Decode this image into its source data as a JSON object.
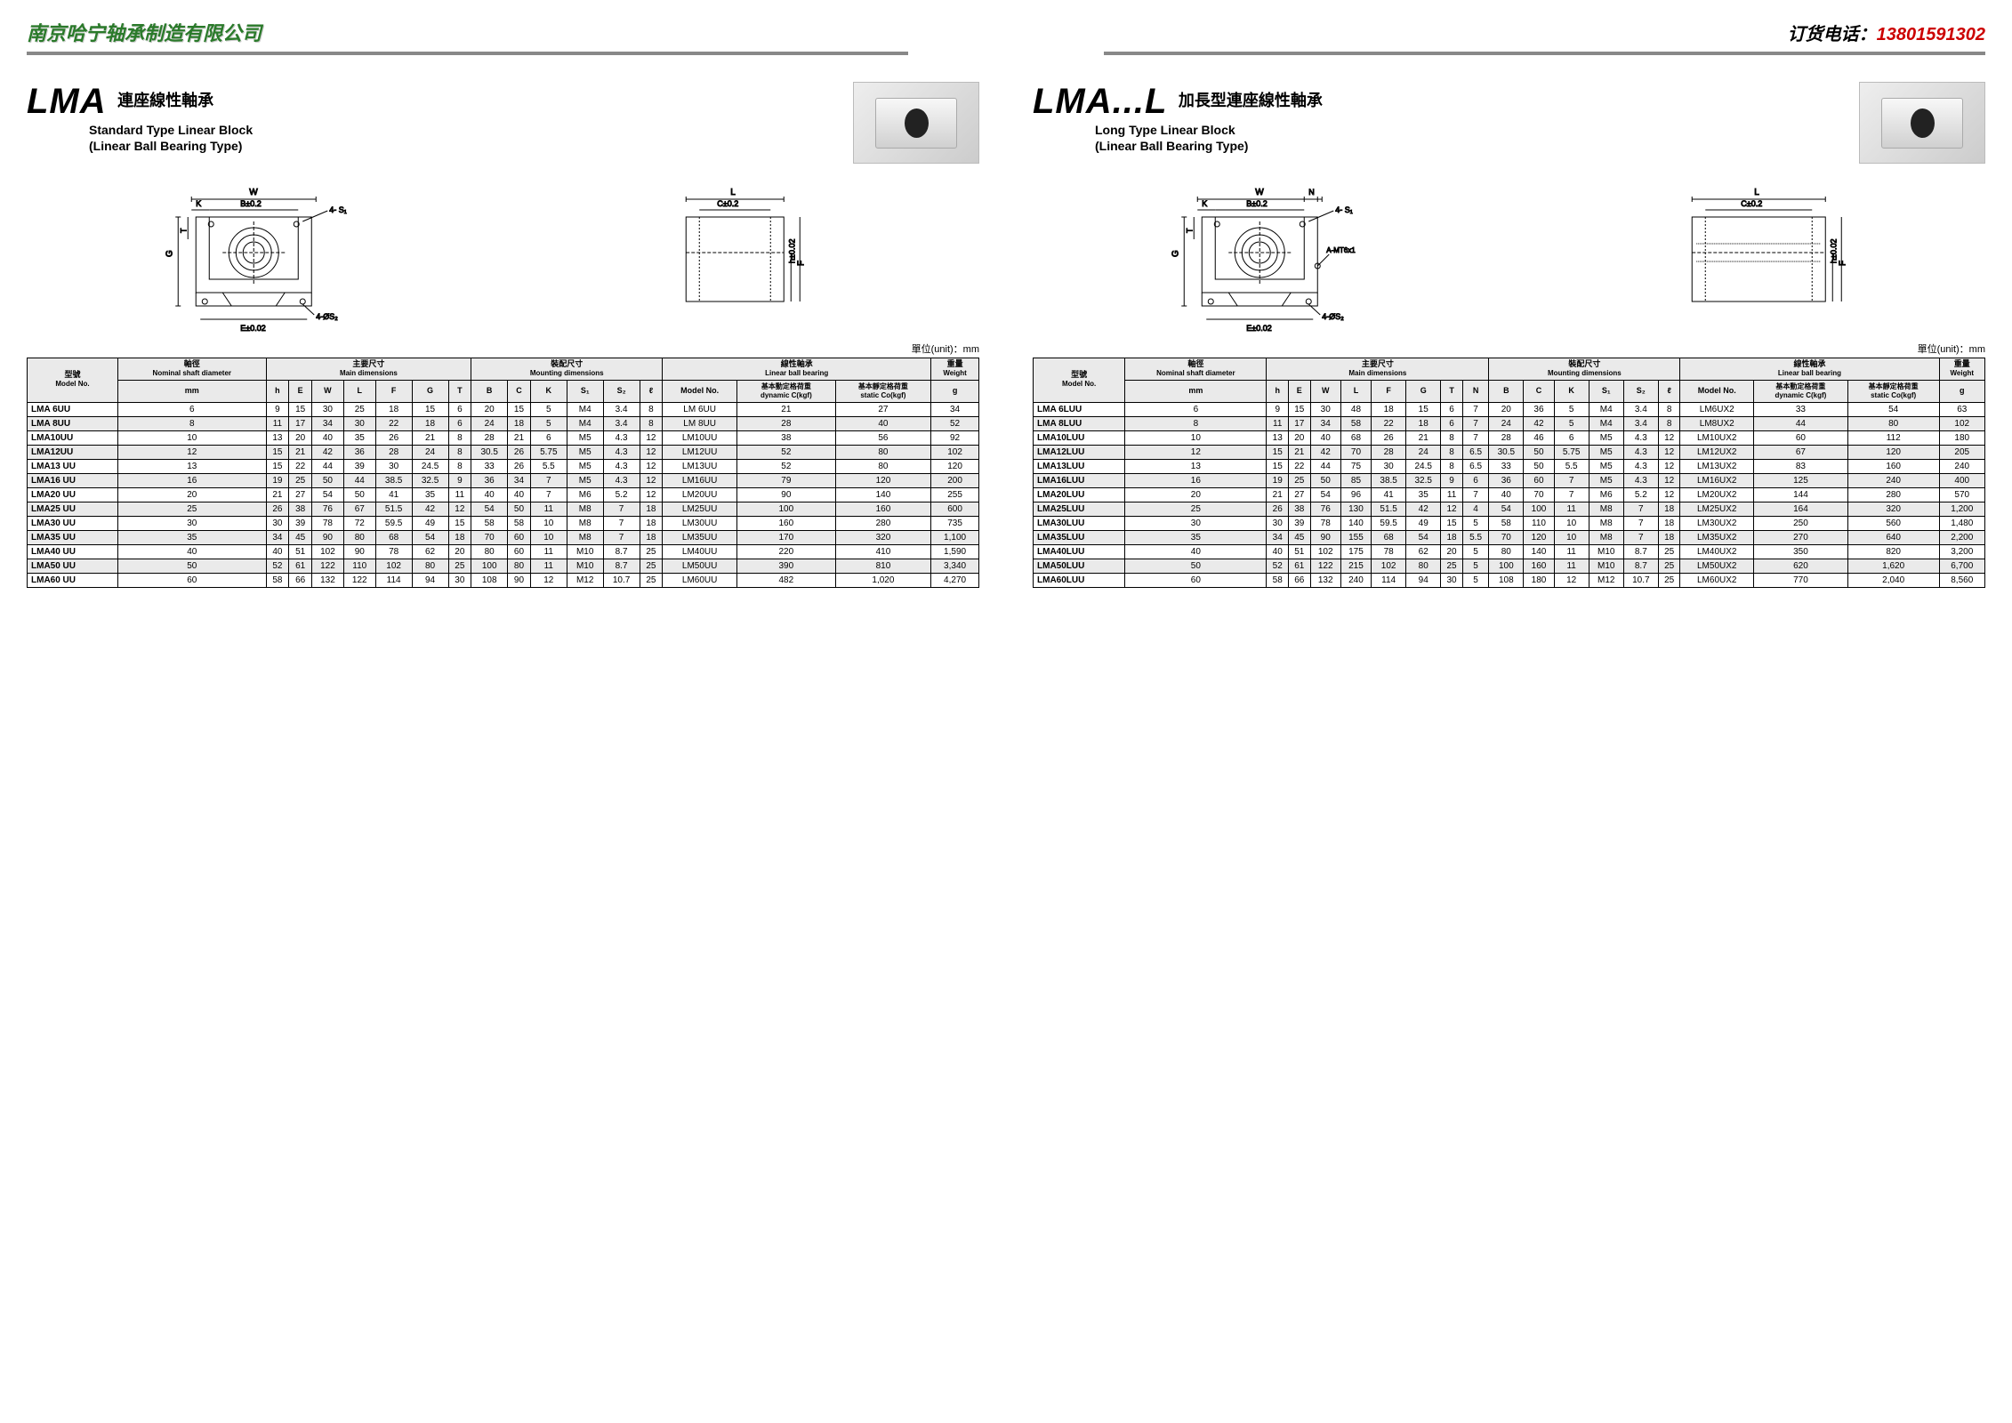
{
  "header": {
    "company": "南京哈宁轴承制造有限公司",
    "phone_label": "订货电话：",
    "phone": "13801591302"
  },
  "left": {
    "series": "LMA",
    "subtitle_cn": "連座線性軸承",
    "subtitle_en1": "Standard Type Linear Block",
    "subtitle_en2": "(Linear Ball Bearing Type)",
    "unit": "單位(unit)：mm",
    "headers": {
      "model": "型號",
      "model_en": "Model No.",
      "shaft": "軸徑",
      "shaft_en": "Nominal shaft diameter",
      "main": "主要尺寸",
      "main_en": "Main dimensions",
      "mount": "裝配尺寸",
      "mount_en": "Mounting dimensions",
      "lbb": "線性軸承",
      "lbb_en": "Linear ball bearing",
      "dyn": "基本動定格荷重",
      "dyn_en": "dynamic C(kgf)",
      "stat": "基本靜定格荷重",
      "stat_en": "static Co(kgf)",
      "wt": "重量",
      "wt_en": "Weight",
      "mm": "mm",
      "g": "g"
    },
    "cols": [
      "h",
      "E",
      "W",
      "L",
      "F",
      "G",
      "T",
      "B",
      "C",
      "K",
      "S₁",
      "S₂",
      "ℓ"
    ],
    "rows": [
      {
        "model": "LMA 6UU",
        "mm": 6,
        "v": [
          9,
          15,
          30,
          25,
          18,
          15,
          6,
          20,
          15,
          5,
          "M4",
          3.4,
          8
        ],
        "lm": "LM 6UU",
        "dyn": 21,
        "stat": 27,
        "g": 34,
        "gray": false
      },
      {
        "model": "LMA 8UU",
        "mm": 8,
        "v": [
          11,
          17,
          34,
          30,
          22,
          18,
          6,
          24,
          18,
          5,
          "M4",
          3.4,
          8
        ],
        "lm": "LM 8UU",
        "dyn": 28,
        "stat": 40,
        "g": 52,
        "gray": true
      },
      {
        "model": "LMA10UU",
        "mm": 10,
        "v": [
          13,
          20,
          40,
          35,
          26,
          21,
          8,
          28,
          21,
          6,
          "M5",
          4.3,
          12
        ],
        "lm": "LM10UU",
        "dyn": 38,
        "stat": 56,
        "g": 92,
        "gray": false
      },
      {
        "model": "LMA12UU",
        "mm": 12,
        "v": [
          15,
          21,
          42,
          36,
          28,
          24,
          8,
          30.5,
          26,
          5.75,
          "M5",
          4.3,
          12
        ],
        "lm": "LM12UU",
        "dyn": 52,
        "stat": 80,
        "g": 102,
        "gray": true
      },
      {
        "model": "LMA13 UU",
        "mm": 13,
        "v": [
          15,
          22,
          44,
          39,
          30,
          24.5,
          8,
          33,
          26,
          5.5,
          "M5",
          4.3,
          12
        ],
        "lm": "LM13UU",
        "dyn": 52,
        "stat": 80,
        "g": 120,
        "gray": false
      },
      {
        "model": "LMA16 UU",
        "mm": 16,
        "v": [
          19,
          25,
          50,
          44,
          38.5,
          32.5,
          9,
          36,
          34,
          7,
          "M5",
          4.3,
          12
        ],
        "lm": "LM16UU",
        "dyn": 79,
        "stat": 120,
        "g": 200,
        "gray": true
      },
      {
        "model": "LMA20 UU",
        "mm": 20,
        "v": [
          21,
          27,
          54,
          50,
          41,
          35,
          11,
          40,
          40,
          7,
          "M6",
          5.2,
          12
        ],
        "lm": "LM20UU",
        "dyn": 90,
        "stat": 140,
        "g": 255,
        "gray": false
      },
      {
        "model": "LMA25 UU",
        "mm": 25,
        "v": [
          26,
          38,
          76,
          67,
          51.5,
          42,
          12,
          54,
          50,
          11,
          "M8",
          7,
          18
        ],
        "lm": "LM25UU",
        "dyn": 100,
        "stat": 160,
        "g": 600,
        "gray": true
      },
      {
        "model": "LMA30 UU",
        "mm": 30,
        "v": [
          30,
          39,
          78,
          72,
          59.5,
          49,
          15,
          58,
          58,
          10,
          "M8",
          7,
          18
        ],
        "lm": "LM30UU",
        "dyn": 160,
        "stat": 280,
        "g": 735,
        "gray": false
      },
      {
        "model": "LMA35 UU",
        "mm": 35,
        "v": [
          34,
          45,
          90,
          80,
          68,
          54,
          18,
          70,
          60,
          10,
          "M8",
          7,
          18
        ],
        "lm": "LM35UU",
        "dyn": 170,
        "stat": 320,
        "g": "1,100",
        "gray": true
      },
      {
        "model": "LMA40 UU",
        "mm": 40,
        "v": [
          40,
          51,
          102,
          90,
          78,
          62,
          20,
          80,
          60,
          11,
          "M10",
          8.7,
          25
        ],
        "lm": "LM40UU",
        "dyn": 220,
        "stat": 410,
        "g": "1,590",
        "gray": false
      },
      {
        "model": "LMA50 UU",
        "mm": 50,
        "v": [
          52,
          61,
          122,
          110,
          102,
          80,
          25,
          100,
          80,
          11,
          "M10",
          8.7,
          25
        ],
        "lm": "LM50UU",
        "dyn": 390,
        "stat": 810,
        "g": "3,340",
        "gray": true
      },
      {
        "model": "LMA60 UU",
        "mm": 60,
        "v": [
          58,
          66,
          132,
          122,
          114,
          94,
          30,
          108,
          90,
          12,
          "M12",
          10.7,
          25
        ],
        "lm": "LM60UU",
        "dyn": 482,
        "stat": "1,020",
        "g": "4,270",
        "gray": false
      }
    ]
  },
  "right": {
    "series": "LMA...L",
    "subtitle_cn": "加長型連座線性軸承",
    "subtitle_en1": "Long Type Linear Block",
    "subtitle_en2": "(Linear Ball Bearing Type)",
    "unit": "單位(unit)：mm",
    "cols": [
      "h",
      "E",
      "W",
      "L",
      "F",
      "G",
      "T",
      "N",
      "B",
      "C",
      "K",
      "S₁",
      "S₂",
      "ℓ"
    ],
    "rows": [
      {
        "model": "LMA 6LUU",
        "mm": 6,
        "v": [
          9,
          15,
          30,
          48,
          18,
          15,
          6,
          7,
          20,
          36,
          5,
          "M4",
          3.4,
          8
        ],
        "lm": "LM6UX2",
        "dyn": 33,
        "stat": 54,
        "g": 63,
        "gray": false
      },
      {
        "model": "LMA 8LUU",
        "mm": 8,
        "v": [
          11,
          17,
          34,
          58,
          22,
          18,
          6,
          7,
          24,
          42,
          5,
          "M4",
          3.4,
          8
        ],
        "lm": "LM8UX2",
        "dyn": 44,
        "stat": 80,
        "g": 102,
        "gray": true
      },
      {
        "model": "LMA10LUU",
        "mm": 10,
        "v": [
          13,
          20,
          40,
          68,
          26,
          21,
          8,
          7,
          28,
          46,
          6,
          "M5",
          4.3,
          12
        ],
        "lm": "LM10UX2",
        "dyn": 60,
        "stat": 112,
        "g": 180,
        "gray": false
      },
      {
        "model": "LMA12LUU",
        "mm": 12,
        "v": [
          15,
          21,
          42,
          70,
          28,
          24,
          8,
          6.5,
          30.5,
          50,
          5.75,
          "M5",
          4.3,
          12
        ],
        "lm": "LM12UX2",
        "dyn": 67,
        "stat": 120,
        "g": 205,
        "gray": true
      },
      {
        "model": "LMA13LUU",
        "mm": 13,
        "v": [
          15,
          22,
          44,
          75,
          30,
          24.5,
          8,
          6.5,
          33,
          50,
          5.5,
          "M5",
          4.3,
          12
        ],
        "lm": "LM13UX2",
        "dyn": 83,
        "stat": 160,
        "g": 240,
        "gray": false
      },
      {
        "model": "LMA16LUU",
        "mm": 16,
        "v": [
          19,
          25,
          50,
          85,
          38.5,
          32.5,
          9,
          6,
          36,
          60,
          7,
          "M5",
          4.3,
          12
        ],
        "lm": "LM16UX2",
        "dyn": 125,
        "stat": 240,
        "g": 400,
        "gray": true
      },
      {
        "model": "LMA20LUU",
        "mm": 20,
        "v": [
          21,
          27,
          54,
          96,
          41,
          35,
          11,
          7,
          40,
          70,
          7,
          "M6",
          5.2,
          12
        ],
        "lm": "LM20UX2",
        "dyn": 144,
        "stat": 280,
        "g": 570,
        "gray": false
      },
      {
        "model": "LMA25LUU",
        "mm": 25,
        "v": [
          26,
          38,
          76,
          130,
          51.5,
          42,
          12,
          4,
          54,
          100,
          11,
          "M8",
          7,
          18
        ],
        "lm": "LM25UX2",
        "dyn": 164,
        "stat": 320,
        "g": "1,200",
        "gray": true
      },
      {
        "model": "LMA30LUU",
        "mm": 30,
        "v": [
          30,
          39,
          78,
          140,
          59.5,
          49,
          15,
          5,
          58,
          110,
          10,
          "M8",
          7,
          18
        ],
        "lm": "LM30UX2",
        "dyn": 250,
        "stat": 560,
        "g": "1,480",
        "gray": false
      },
      {
        "model": "LMA35LUU",
        "mm": 35,
        "v": [
          34,
          45,
          90,
          155,
          68,
          54,
          18,
          5.5,
          70,
          120,
          10,
          "M8",
          7,
          18
        ],
        "lm": "LM35UX2",
        "dyn": 270,
        "stat": 640,
        "g": "2,200",
        "gray": true
      },
      {
        "model": "LMA40LUU",
        "mm": 40,
        "v": [
          40,
          51,
          102,
          175,
          78,
          62,
          20,
          5,
          80,
          140,
          11,
          "M10",
          8.7,
          25
        ],
        "lm": "LM40UX2",
        "dyn": 350,
        "stat": 820,
        "g": "3,200",
        "gray": false
      },
      {
        "model": "LMA50LUU",
        "mm": 50,
        "v": [
          52,
          61,
          122,
          215,
          102,
          80,
          25,
          5,
          100,
          160,
          11,
          "M10",
          8.7,
          25
        ],
        "lm": "LM50UX2",
        "dyn": 620,
        "stat": "1,620",
        "g": "6,700",
        "gray": true
      },
      {
        "model": "LMA60LUU",
        "mm": 60,
        "v": [
          58,
          66,
          132,
          240,
          114,
          94,
          30,
          5,
          108,
          180,
          12,
          "M12",
          10.7,
          25
        ],
        "lm": "LM60UX2",
        "dyn": 770,
        "stat": "2,040",
        "g": "8,560",
        "gray": false
      }
    ]
  },
  "diag": {
    "labels": {
      "W": "W",
      "K": "K",
      "B": "B±0.2",
      "S1": "4- S₁",
      "L": "L",
      "C": "C±0.2",
      "G": "G",
      "T": "T",
      "E": "E±0.02",
      "S2": "4-ØS₂",
      "h": "h±0.02",
      "F": "F",
      "ell": "ℓ",
      "N": "N",
      "A": "A-MT6x1"
    }
  }
}
